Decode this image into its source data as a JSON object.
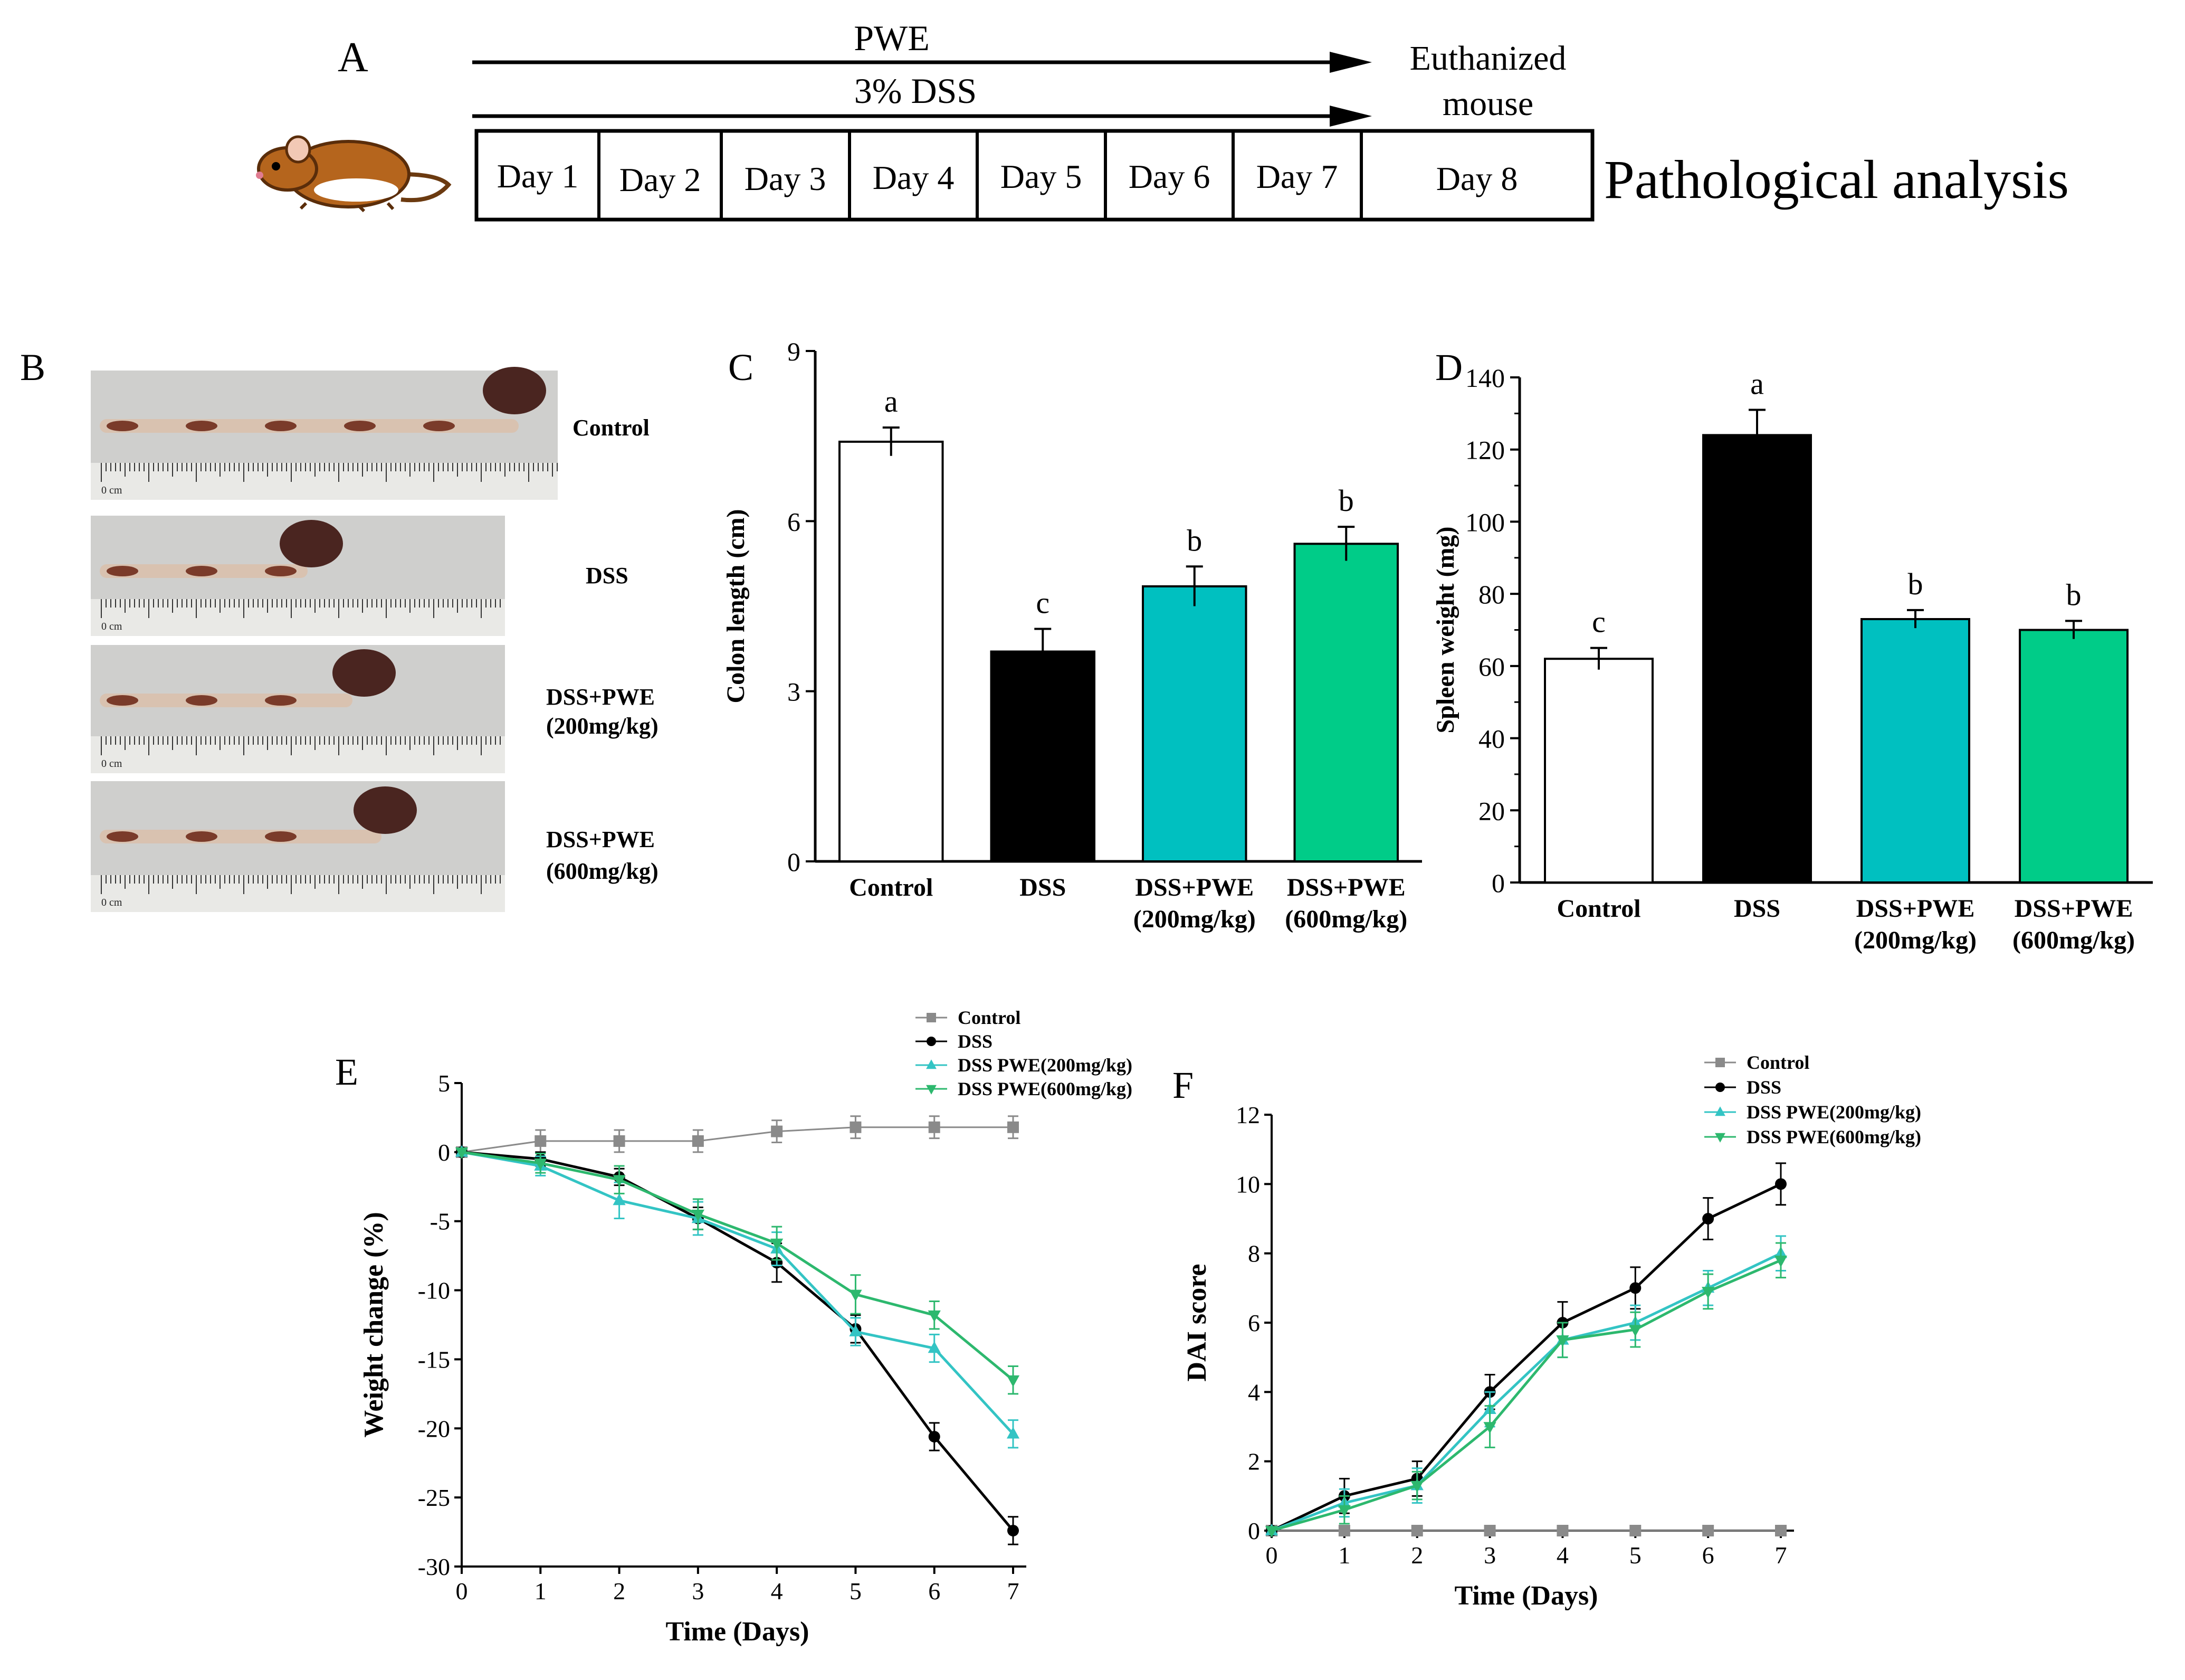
{
  "panel_labels": {
    "a": "A",
    "b": "B",
    "c": "C",
    "d": "D",
    "e": "E",
    "f": "F"
  },
  "timeline": {
    "pwe_label": "PWE",
    "dss_label": "3% DSS",
    "euthanized_line1": "Euthanized",
    "euthanized_line2": "mouse",
    "days": [
      "Day 1",
      "Day 2",
      "Day 3",
      "Day 4",
      "Day 5",
      "Day 6",
      "Day 7",
      "Day 8"
    ],
    "analysis_label": "Pathological analysis",
    "mouse_icon": "mouse-icon"
  },
  "photos": {
    "items": [
      {
        "label_line1": "Control",
        "label_line2": ""
      },
      {
        "label_line1": "DSS",
        "label_line2": ""
      },
      {
        "label_line1": "DSS+PWE",
        "label_line2": "(200mg/kg)"
      },
      {
        "label_line1": "DSS+PWE",
        "label_line2": "(600mg/kg)"
      }
    ],
    "ruler_units": "0 cm"
  },
  "colors": {
    "control": "#ffffff",
    "dss": "#000000",
    "pwe200": "#00c0c0",
    "pwe600": "#00cc88",
    "line_control": "#8a8a8a",
    "line_dss": "#000000",
    "line_pwe200": "#33c4c4",
    "line_pwe600": "#2db86e"
  },
  "chart_data": [
    {
      "id": "C",
      "type": "bar",
      "categories": [
        [
          "Control"
        ],
        [
          "DSS"
        ],
        [
          "DSS+PWE",
          "(200mg/kg)"
        ],
        [
          "DSS+PWE",
          "(600mg/kg)"
        ]
      ],
      "values": [
        7.4,
        3.7,
        4.85,
        5.6
      ],
      "errors": [
        0.25,
        0.4,
        0.35,
        0.3
      ],
      "letters": [
        "a",
        "c",
        "b",
        "b"
      ],
      "ylabel": "Colon length (cm)",
      "ylim": [
        0,
        9
      ],
      "yticks": [
        0,
        3,
        6,
        9
      ]
    },
    {
      "id": "D",
      "type": "bar",
      "categories": [
        [
          "Control"
        ],
        [
          "DSS"
        ],
        [
          "DSS+PWE",
          "(200mg/kg)"
        ],
        [
          "DSS+PWE",
          "(600mg/kg)"
        ]
      ],
      "values": [
        62,
        124,
        73,
        70
      ],
      "errors": [
        3,
        7,
        2.5,
        2.5
      ],
      "letters": [
        "c",
        "a",
        "b",
        "b"
      ],
      "ylabel": "Spleen weight (mg)",
      "ylim": [
        0,
        140
      ],
      "yticks": [
        0,
        20,
        40,
        60,
        80,
        100,
        120,
        140
      ]
    },
    {
      "id": "E",
      "type": "line",
      "x": [
        0,
        1,
        2,
        3,
        4,
        5,
        6,
        7
      ],
      "xlabel": "Time (Days)",
      "ylabel": "Weight change (%)",
      "ylim": [
        -30,
        5
      ],
      "yticks": [
        5,
        0,
        -5,
        -10,
        -15,
        -20,
        -25,
        -30
      ],
      "xlim": [
        0,
        7
      ],
      "legend": "top-right",
      "series": [
        {
          "name": "Control",
          "values": [
            0,
            0.8,
            0.8,
            0.8,
            1.5,
            1.8,
            1.8,
            1.8
          ],
          "errors": [
            0,
            0.8,
            0.8,
            0.8,
            0.8,
            0.8,
            0.8,
            0.8
          ]
        },
        {
          "name": "DSS",
          "values": [
            0,
            -0.5,
            -1.8,
            -4.8,
            -8,
            -12.8,
            -20.6,
            -27.4
          ],
          "errors": [
            0,
            0.5,
            0.6,
            0.8,
            1.4,
            1,
            1,
            1
          ]
        },
        {
          "name": "DSS PWE(200mg/kg)",
          "values": [
            0,
            -1,
            -3.5,
            -4.8,
            -7,
            -13,
            -14.2,
            -20.4
          ],
          "errors": [
            0,
            0.7,
            1.3,
            1.2,
            1.2,
            1,
            1,
            1
          ]
        },
        {
          "name": "DSS PWE(600mg/kg)",
          "values": [
            0,
            -0.8,
            -2,
            -4.5,
            -6.6,
            -10.3,
            -11.8,
            -16.5
          ],
          "errors": [
            0,
            0.7,
            1,
            1.1,
            1.2,
            1.4,
            1,
            1
          ]
        }
      ]
    },
    {
      "id": "F",
      "type": "line",
      "x": [
        0,
        1,
        2,
        3,
        4,
        5,
        6,
        7
      ],
      "xlabel": "Time (Days)",
      "ylabel": "DAI score",
      "ylim": [
        0,
        12
      ],
      "yticks": [
        0,
        2,
        4,
        6,
        8,
        10,
        12
      ],
      "xlim": [
        0,
        7
      ],
      "legend": "top-right",
      "series": [
        {
          "name": "Control",
          "values": [
            0,
            0,
            0,
            0,
            0,
            0,
            0,
            0
          ],
          "errors": [
            0,
            0,
            0,
            0,
            0,
            0,
            0,
            0
          ]
        },
        {
          "name": "DSS",
          "values": [
            0,
            1,
            1.5,
            4,
            6,
            7,
            9,
            10
          ],
          "errors": [
            0,
            0.5,
            0.5,
            0.5,
            0.6,
            0.6,
            0.6,
            0.6
          ]
        },
        {
          "name": "DSS PWE(200mg/kg)",
          "values": [
            0,
            0.8,
            1.3,
            3.5,
            5.5,
            6,
            7,
            8
          ],
          "errors": [
            0,
            0.4,
            0.5,
            0.5,
            0.5,
            0.5,
            0.5,
            0.5
          ]
        },
        {
          "name": "DSS PWE(600mg/kg)",
          "values": [
            0,
            0.6,
            1.3,
            3,
            5.5,
            5.8,
            6.9,
            7.8
          ],
          "errors": [
            0,
            0.4,
            0.4,
            0.6,
            0.5,
            0.5,
            0.5,
            0.5
          ]
        }
      ]
    }
  ]
}
